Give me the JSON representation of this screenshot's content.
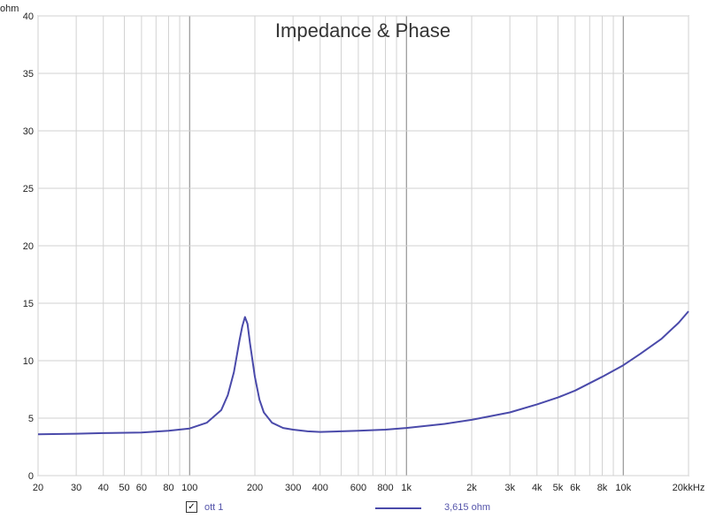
{
  "chart_data": {
    "type": "line",
    "title": "Impedance & Phase",
    "y_unit_label": "ohm",
    "x_unit_label": "kHz",
    "x_scale": "log",
    "xlim": [
      20,
      20000
    ],
    "ylim": [
      0,
      40
    ],
    "grid": true,
    "y_ticks": [
      0,
      5,
      10,
      15,
      20,
      25,
      30,
      35,
      40
    ],
    "x_ticks": [
      {
        "value": 20,
        "label": "20"
      },
      {
        "value": 30,
        "label": "30"
      },
      {
        "value": 40,
        "label": "40"
      },
      {
        "value": 50,
        "label": "50"
      },
      {
        "value": 60,
        "label": "60"
      },
      {
        "value": 80,
        "label": "80"
      },
      {
        "value": 100,
        "label": "100"
      },
      {
        "value": 200,
        "label": "200"
      },
      {
        "value": 300,
        "label": "300"
      },
      {
        "value": 400,
        "label": "400"
      },
      {
        "value": 600,
        "label": "600"
      },
      {
        "value": 800,
        "label": "800"
      },
      {
        "value": 1000,
        "label": "1k"
      },
      {
        "value": 2000,
        "label": "2k"
      },
      {
        "value": 3000,
        "label": "3k"
      },
      {
        "value": 4000,
        "label": "4k"
      },
      {
        "value": 5000,
        "label": "5k"
      },
      {
        "value": 6000,
        "label": "6k"
      },
      {
        "value": 8000,
        "label": "8k"
      },
      {
        "value": 10000,
        "label": "10k"
      },
      {
        "value": 20000,
        "label": "20k"
      }
    ],
    "series": [
      {
        "name": "ott 1",
        "color": "#4a4aaa",
        "x": [
          20,
          30,
          40,
          60,
          80,
          100,
          120,
          140,
          150,
          160,
          170,
          175,
          180,
          185,
          190,
          200,
          210,
          220,
          240,
          270,
          300,
          350,
          400,
          500,
          600,
          800,
          1000,
          1500,
          2000,
          3000,
          4000,
          5000,
          6000,
          8000,
          10000,
          12000,
          15000,
          18000,
          20000
        ],
        "y": [
          3.6,
          3.65,
          3.7,
          3.75,
          3.9,
          4.1,
          4.6,
          5.7,
          7.0,
          9.0,
          11.8,
          13.0,
          13.8,
          13.2,
          11.5,
          8.6,
          6.6,
          5.5,
          4.6,
          4.15,
          4.0,
          3.85,
          3.8,
          3.85,
          3.9,
          4.0,
          4.15,
          4.5,
          4.85,
          5.5,
          6.2,
          6.8,
          7.4,
          8.6,
          9.6,
          10.6,
          11.9,
          13.3,
          14.3
        ]
      }
    ]
  },
  "legend": {
    "check_mark": "✓",
    "series_name": "ott 1",
    "readout_value": "3,615 ohm"
  }
}
